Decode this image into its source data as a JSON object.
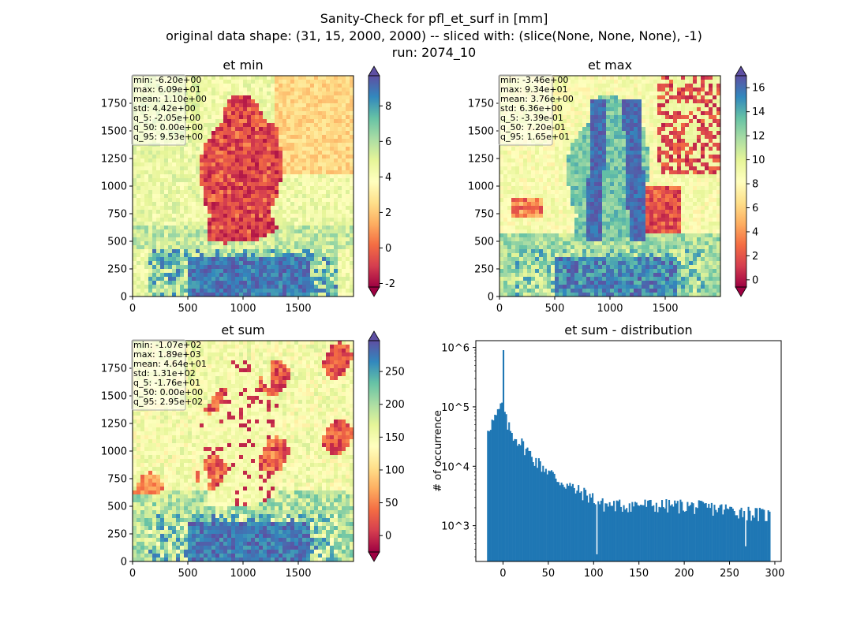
{
  "figure": {
    "suptitle": [
      "Sanity-Check for pfl_et_surf in [mm]",
      "original data shape: (31, 15, 2000, 2000) -- sliced with: (slice(None, None, None), -1)",
      "run: 2074_10"
    ]
  },
  "chart_data": [
    {
      "type": "heatmap",
      "title": "et min",
      "xticks": [
        "0",
        "500",
        "1000",
        "1500"
      ],
      "yticks": [
        "0",
        "250",
        "500",
        "750",
        "1000",
        "1250",
        "1500",
        "1750"
      ],
      "xlim": [
        0,
        2000
      ],
      "ylim": [
        0,
        2000
      ],
      "colormap": "Spectral",
      "color_range": [
        -2.2,
        9.7
      ],
      "colorbar_ticks": [
        "-2",
        "0",
        "2",
        "4",
        "6",
        "8"
      ],
      "colorbar_tick_values": [
        -2,
        0,
        2,
        4,
        6,
        8
      ],
      "stats": [
        "min: -6.20e+00",
        "max: 6.09e+01",
        "mean: 1.10e+00",
        "std: 4.42e+00",
        "q_5: -2.05e+00",
        "q_50: 0.00e+00",
        "q_95: 9.53e+00"
      ]
    },
    {
      "type": "heatmap",
      "title": "et max",
      "xticks": [
        "0",
        "500",
        "1000",
        "1500"
      ],
      "yticks": [
        "0",
        "250",
        "500",
        "750",
        "1000",
        "1250",
        "1500",
        "1750"
      ],
      "xlim": [
        0,
        2000
      ],
      "ylim": [
        0,
        2000
      ],
      "colormap": "Spectral",
      "color_range": [
        -0.6,
        17
      ],
      "colorbar_ticks": [
        "0",
        "2",
        "4",
        "6",
        "8",
        "10",
        "12",
        "14",
        "16"
      ],
      "colorbar_tick_values": [
        0,
        2,
        4,
        6,
        8,
        10,
        12,
        14,
        16
      ],
      "stats": [
        "min: -3.46e+00",
        "max: 9.34e+01",
        "mean: 3.76e+00",
        "std: 6.36e+00",
        "q_5: -3.39e-01",
        "q_50: 7.20e-01",
        "q_95: 1.65e+01"
      ]
    },
    {
      "type": "heatmap",
      "title": "et sum",
      "xticks": [
        "0",
        "500",
        "1000",
        "1500"
      ],
      "yticks": [
        "0",
        "250",
        "500",
        "750",
        "1000",
        "1250",
        "1500",
        "1750"
      ],
      "xlim": [
        0,
        2000
      ],
      "ylim": [
        0,
        2000
      ],
      "colormap": "Spectral",
      "color_range": [
        -25,
        297
      ],
      "colorbar_ticks": [
        "0",
        "50",
        "100",
        "150",
        "200",
        "250"
      ],
      "colorbar_tick_values": [
        0,
        50,
        100,
        150,
        200,
        250
      ],
      "stats": [
        "min: -1.07e+02",
        "max: 1.89e+03",
        "mean: 4.64e+01",
        "std: 1.31e+02",
        "q_5: -1.76e+01",
        "q_50: 0.00e+00",
        "q_95: 2.95e+02"
      ]
    },
    {
      "type": "bar",
      "title": "et sum - distribution",
      "ylabel": "# of occurrence",
      "xlabel": "",
      "yscale": "log",
      "xlim": [
        -30,
        307
      ],
      "ylim": [
        250,
        1300000
      ],
      "xticks": [
        "0",
        "50",
        "100",
        "150",
        "200",
        "250",
        "300"
      ],
      "xtick_values": [
        0,
        50,
        100,
        150,
        200,
        250,
        300
      ],
      "yticks": [
        "10^3",
        "10^4",
        "10^5",
        "10^6"
      ],
      "ytick_values": [
        1000,
        10000,
        100000,
        1000000
      ],
      "bin_range": [
        -17.6,
        295
      ],
      "color": "#1f77b4",
      "shape_points": [
        [
          -17,
          45000
        ],
        [
          -10,
          60000
        ],
        [
          -5,
          80000
        ],
        [
          -1,
          120000
        ],
        [
          0,
          900000
        ],
        [
          1,
          80000
        ],
        [
          5,
          50000
        ],
        [
          10,
          35000
        ],
        [
          20,
          25000
        ],
        [
          30,
          16000
        ],
        [
          40,
          11000
        ],
        [
          50,
          8500
        ],
        [
          60,
          6000
        ],
        [
          70,
          5000
        ],
        [
          80,
          4000
        ],
        [
          90,
          3500
        ],
        [
          100,
          2900
        ],
        [
          110,
          2300
        ],
        [
          130,
          2200
        ],
        [
          150,
          2300
        ],
        [
          170,
          2200
        ],
        [
          200,
          2200
        ],
        [
          230,
          2000
        ],
        [
          260,
          1800
        ],
        [
          280,
          1600
        ],
        [
          295,
          1500
        ]
      ],
      "notable_dips": [
        [
          103,
          330
        ],
        [
          268,
          450
        ]
      ]
    }
  ]
}
